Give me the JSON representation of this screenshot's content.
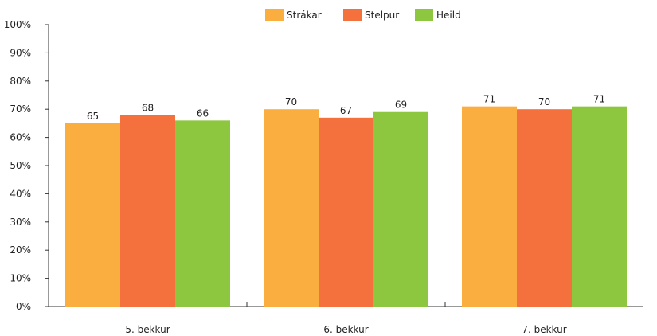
{
  "chart_data": {
    "type": "bar",
    "categories": [
      "5. bekkur",
      "6. bekkur",
      "7. bekkur"
    ],
    "series": [
      {
        "name": "Strákar",
        "color": "#FBAE40",
        "values": [
          65,
          70,
          71
        ]
      },
      {
        "name": "Stelpur",
        "color": "#F4703C",
        "values": [
          68,
          67,
          70
        ]
      },
      {
        "name": "Heild",
        "color": "#8DC63F",
        "values": [
          66,
          69,
          71
        ]
      }
    ],
    "display_values": [
      [
        65,
        70,
        71
      ],
      [
        68,
        67,
        70
      ],
      [
        66,
        69,
        71
      ]
    ],
    "ylim": [
      0,
      100
    ],
    "yticks": [
      {
        "value": 0,
        "label": "0%"
      },
      {
        "value": 10,
        "label": "10%"
      },
      {
        "value": 20,
        "label": "20%"
      },
      {
        "value": 30,
        "label": "30%"
      },
      {
        "value": 40,
        "label": "40%"
      },
      {
        "value": 50,
        "label": "50%"
      },
      {
        "value": 60,
        "label": "60%"
      },
      {
        "value": 70,
        "label": "70%"
      },
      {
        "value": 80,
        "label": "80%"
      },
      {
        "value": 90,
        "label": "90%"
      },
      {
        "value": 100,
        "label": "100%"
      }
    ],
    "legend_position": "top-right",
    "grid": false
  }
}
